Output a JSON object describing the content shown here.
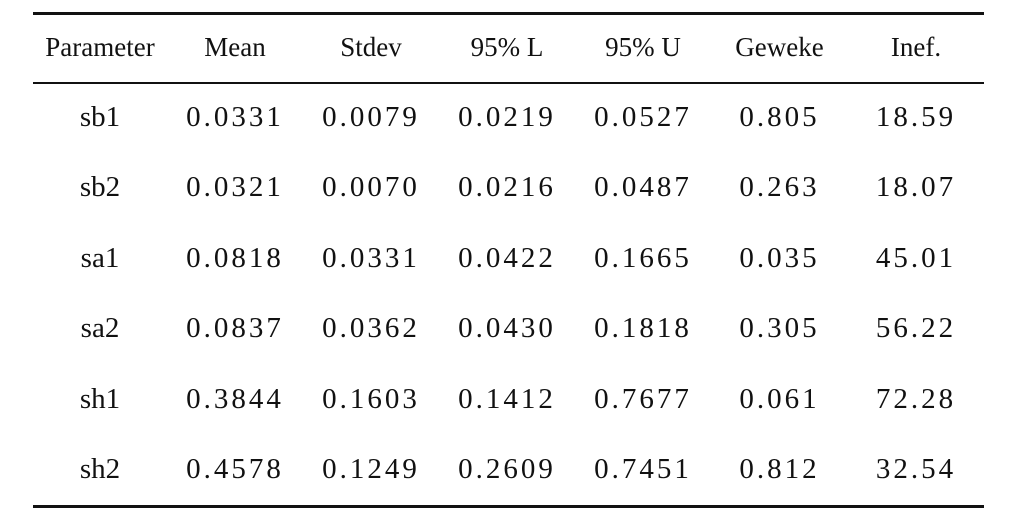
{
  "table": {
    "headers": [
      "Parameter",
      "Mean",
      "Stdev",
      "95% L",
      "95% U",
      "Geweke",
      "Inef."
    ],
    "rows": [
      [
        "sb1",
        "0.0331",
        "0.0079",
        "0.0219",
        "0.0527",
        "0.805",
        "18.59"
      ],
      [
        "sb2",
        "0.0321",
        "0.0070",
        "0.0216",
        "0.0487",
        "0.263",
        "18.07"
      ],
      [
        "sa1",
        "0.0818",
        "0.0331",
        "0.0422",
        "0.1665",
        "0.035",
        "45.01"
      ],
      [
        "sa2",
        "0.0837",
        "0.0362",
        "0.0430",
        "0.1818",
        "0.305",
        "56.22"
      ],
      [
        "sh1",
        "0.3844",
        "0.1603",
        "0.1412",
        "0.7677",
        "0.061",
        "72.28"
      ],
      [
        "sh2",
        "0.4578",
        "0.1249",
        "0.2609",
        "0.7451",
        "0.812",
        "32.54"
      ]
    ]
  }
}
